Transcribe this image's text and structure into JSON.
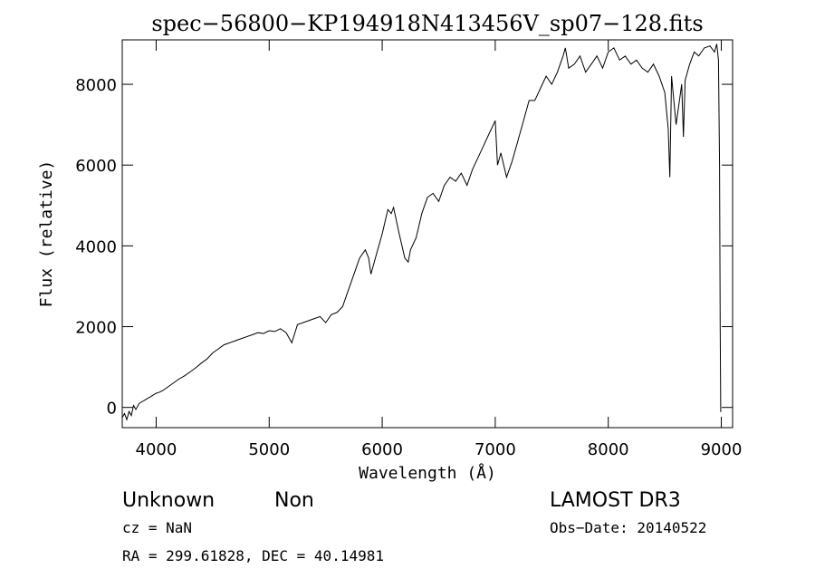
{
  "chart_data": {
    "type": "line",
    "title": "spec−56800−KP194918N413456V_sp07−128.fits",
    "xlabel": "Wavelength (Å)",
    "ylabel": "Flux (relative)",
    "xlim": [
      3700,
      9100
    ],
    "ylim": [
      -500,
      9100
    ],
    "xticks": [
      4000,
      5000,
      6000,
      7000,
      8000,
      9000
    ],
    "yticks": [
      0,
      2000,
      4000,
      6000,
      8000
    ],
    "grid": false,
    "series": [
      {
        "x": [
          3700,
          3720,
          3740,
          3760,
          3780,
          3800,
          3820,
          3850,
          3880,
          3910,
          3940,
          3970,
          4000,
          4030,
          4060,
          4100,
          4150,
          4200,
          4250,
          4300,
          4350,
          4400,
          4450,
          4500,
          4550,
          4600,
          4650,
          4700,
          4750,
          4800,
          4850,
          4900,
          4950,
          5000,
          5050,
          5100,
          5150,
          5200,
          5250,
          5300,
          5350,
          5400,
          5450,
          5500,
          5550,
          5600,
          5650,
          5700,
          5750,
          5800,
          5850,
          5880,
          5900,
          5950,
          6000,
          6050,
          6080,
          6100,
          6150,
          6200,
          6230,
          6250,
          6300,
          6350,
          6400,
          6450,
          6500,
          6550,
          6600,
          6650,
          6700,
          6750,
          6800,
          6850,
          6900,
          6950,
          7000,
          7020,
          7050,
          7100,
          7150,
          7200,
          7250,
          7300,
          7350,
          7400,
          7450,
          7500,
          7550,
          7600,
          7620,
          7650,
          7700,
          7750,
          7800,
          7850,
          7900,
          7950,
          8000,
          8050,
          8100,
          8150,
          8200,
          8250,
          8300,
          8350,
          8400,
          8450,
          8500,
          8530,
          8545,
          8560,
          8600,
          8650,
          8665,
          8680,
          8720,
          8760,
          8800,
          8850,
          8900,
          8940,
          8960,
          8975,
          8985,
          8990,
          8995,
          9000
        ],
        "y": [
          -250,
          -150,
          -300,
          -100,
          -200,
          50,
          -50,
          100,
          150,
          200,
          250,
          300,
          350,
          380,
          420,
          500,
          600,
          700,
          780,
          880,
          980,
          1100,
          1200,
          1350,
          1450,
          1550,
          1600,
          1650,
          1700,
          1750,
          1800,
          1850,
          1830,
          1900,
          1880,
          1950,
          1850,
          1600,
          2050,
          2100,
          2150,
          2200,
          2250,
          2100,
          2300,
          2350,
          2500,
          2900,
          3300,
          3700,
          3900,
          3700,
          3300,
          3800,
          4300,
          4900,
          4800,
          4950,
          4300,
          3700,
          3600,
          3900,
          4200,
          4800,
          5200,
          5300,
          5100,
          5500,
          5700,
          5600,
          5800,
          5500,
          5900,
          6200,
          6500,
          6800,
          7100,
          6000,
          6300,
          5700,
          6100,
          6600,
          7100,
          7600,
          7600,
          7900,
          8200,
          8000,
          8300,
          8700,
          8900,
          8400,
          8500,
          8700,
          8300,
          8500,
          8700,
          8400,
          8800,
          8900,
          8600,
          8700,
          8500,
          8600,
          8400,
          8300,
          8500,
          8200,
          7800,
          6900,
          5700,
          8200,
          7000,
          8000,
          6700,
          8100,
          8500,
          8800,
          8700,
          8900,
          8950,
          8800,
          9000,
          8600,
          6000,
          2000,
          -100,
          -100
        ]
      }
    ]
  },
  "annotations": {
    "object_class": "Unknown",
    "subclass": "Non",
    "survey": "LAMOST DR3",
    "redshift": "cz = NaN",
    "obs_date": "Obs−Date: 20140522",
    "coords": "RA = 299.61828, DEC =  40.14981"
  },
  "colors": {
    "line": "#000000",
    "background": "#ffffff"
  }
}
